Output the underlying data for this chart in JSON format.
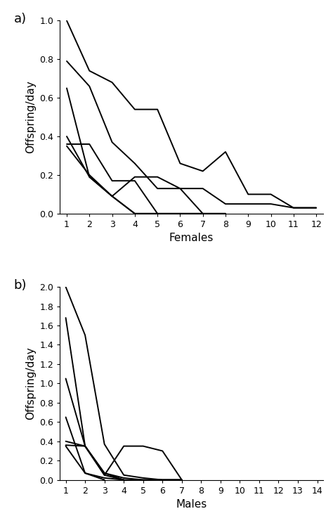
{
  "panel_a": {
    "xlabel": "Females",
    "ylabel": "Offspring/day",
    "xlim_min": 0.7,
    "xlim_max": 12.3,
    "ylim": [
      0,
      1.0
    ],
    "yticks": [
      0,
      0.2,
      0.4,
      0.6,
      0.8,
      1.0
    ],
    "xticks": [
      1,
      2,
      3,
      4,
      5,
      6,
      7,
      8,
      9,
      10,
      11,
      12
    ],
    "label": "a)",
    "lines": [
      {
        "x": [
          1,
          2,
          3,
          4,
          5,
          6,
          7,
          8,
          9,
          10,
          11,
          12
        ],
        "y": [
          1.0,
          0.74,
          0.68,
          0.54,
          0.54,
          0.26,
          0.22,
          0.32,
          0.1,
          0.1,
          0.03,
          0.03
        ]
      },
      {
        "x": [
          1,
          2,
          3,
          4,
          5,
          6,
          7,
          8,
          9,
          10,
          11,
          12
        ],
        "y": [
          0.79,
          0.66,
          0.37,
          0.26,
          0.13,
          0.13,
          0.13,
          0.05,
          0.05,
          0.05,
          0.03,
          0.03
        ]
      },
      {
        "x": [
          1,
          2,
          3,
          4,
          5,
          6,
          7,
          8
        ],
        "y": [
          0.65,
          0.19,
          0.09,
          0.19,
          0.19,
          0.13,
          0.0,
          0.0
        ]
      },
      {
        "x": [
          1,
          2,
          3,
          4,
          5,
          6,
          7
        ],
        "y": [
          0.4,
          0.19,
          0.09,
          0.0,
          0.0,
          0.0,
          0.0
        ]
      },
      {
        "x": [
          1,
          2,
          3,
          4,
          5,
          6,
          7,
          8
        ],
        "y": [
          0.36,
          0.36,
          0.17,
          0.17,
          0.0,
          0.0,
          0.0,
          0.0
        ]
      },
      {
        "x": [
          1,
          2,
          3,
          4,
          5
        ],
        "y": [
          0.35,
          0.2,
          0.09,
          0.0,
          0.0
        ]
      }
    ]
  },
  "panel_b": {
    "xlabel": "Males",
    "ylabel": "Offspring/day",
    "xlim_min": 0.7,
    "xlim_max": 14.3,
    "ylim": [
      0,
      2.0
    ],
    "yticks": [
      0,
      0.2,
      0.4,
      0.6,
      0.8,
      1.0,
      1.2,
      1.4,
      1.6,
      1.8,
      2.0
    ],
    "xticks": [
      1,
      2,
      3,
      4,
      5,
      6,
      7,
      8,
      9,
      10,
      11,
      12,
      13,
      14
    ],
    "label": "b)",
    "lines": [
      {
        "x": [
          1,
          2,
          3,
          4,
          5,
          6,
          7
        ],
        "y": [
          2.0,
          1.5,
          0.37,
          0.05,
          0.02,
          0.0,
          0.0
        ]
      },
      {
        "x": [
          1,
          2,
          3,
          4,
          5,
          6,
          7
        ],
        "y": [
          1.68,
          0.35,
          0.07,
          0.02,
          0.0,
          0.0,
          0.0
        ]
      },
      {
        "x": [
          1,
          2,
          3,
          4,
          5,
          6,
          7
        ],
        "y": [
          1.05,
          0.35,
          0.05,
          0.35,
          0.35,
          0.3,
          0.0
        ]
      },
      {
        "x": [
          1,
          2,
          3,
          4,
          5,
          6,
          7
        ],
        "y": [
          0.65,
          0.07,
          0.02,
          0.0,
          0.0,
          0.0,
          0.0
        ]
      },
      {
        "x": [
          1,
          2,
          3,
          4
        ],
        "y": [
          0.4,
          0.35,
          0.07,
          0.0
        ]
      },
      {
        "x": [
          1,
          2,
          3,
          4
        ],
        "y": [
          0.36,
          0.35,
          0.05,
          0.0
        ]
      },
      {
        "x": [
          1,
          2,
          3
        ],
        "y": [
          0.35,
          0.07,
          0.0
        ]
      }
    ]
  },
  "line_color": "#000000",
  "line_width": 1.4,
  "bg_color": "#ffffff",
  "label_fontsize": 13,
  "tick_fontsize": 9,
  "axis_label_fontsize": 11
}
